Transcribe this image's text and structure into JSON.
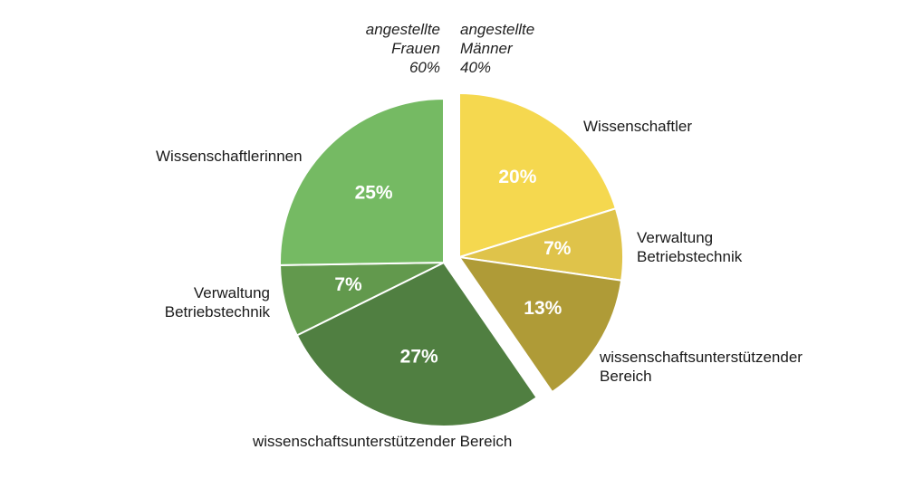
{
  "chart_data": {
    "type": "pie",
    "groups": [
      {
        "lines": [
          "angestellte",
          "Frauen",
          "60%"
        ],
        "value": 60
      },
      {
        "lines": [
          "angestellte",
          "Männer",
          "40%"
        ],
        "value": 40
      }
    ],
    "slices": [
      {
        "group": "Männer",
        "label": [
          "Wissenschaftler"
        ],
        "value": 20,
        "value_label": "20%",
        "color": "#F5D84F"
      },
      {
        "group": "Männer",
        "label": [
          "Verwaltung",
          "Betriebstechnik"
        ],
        "value": 7,
        "value_label": "7%",
        "color": "#DFC34A"
      },
      {
        "group": "Männer",
        "label": [
          "wissenschaftsunterstützender",
          "Bereich"
        ],
        "value": 13,
        "value_label": "13%",
        "color": "#AF9B37"
      },
      {
        "group": "Frauen",
        "label": [
          "wissenschaftsunterstützender Bereich"
        ],
        "value": 27,
        "value_label": "27%",
        "color": "#507F41"
      },
      {
        "group": "Frauen",
        "label": [
          "Verwaltung",
          "Betriebstechnik"
        ],
        "value": 7,
        "value_label": "7%",
        "color": "#62994D"
      },
      {
        "group": "Frauen",
        "label": [
          "Wissenschaftlerinnen"
        ],
        "value": 25,
        "value_label": "25%",
        "color": "#75BA63"
      }
    ]
  }
}
